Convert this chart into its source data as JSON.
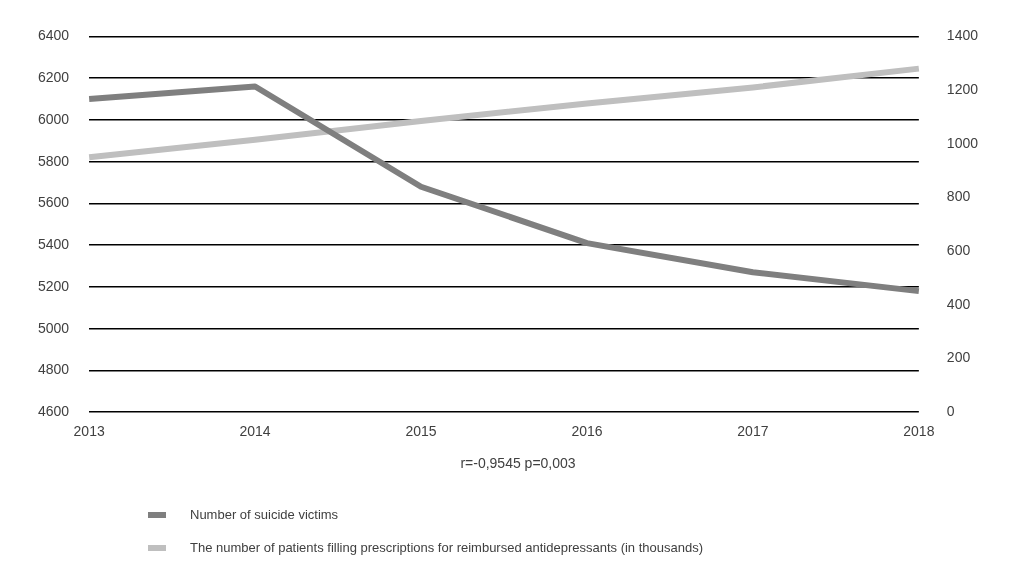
{
  "chart_data": {
    "type": "line",
    "categories": [
      "2013",
      "2014",
      "2015",
      "2016",
      "2017",
      "2018"
    ],
    "series": [
      {
        "name": "Number  of suicide victims",
        "color": "#7f7f7f",
        "values": [
          6100,
          6160,
          5680,
          5410,
          5270,
          5180
        ]
      },
      {
        "name": "The number of patients filling prescriptions for reimbursed antidepressants  (in thousands)",
        "color": "#bfbfbf",
        "values": [
          950,
          1015,
          1085,
          1150,
          1210,
          1280
        ],
        "axis": "y2"
      }
    ],
    "ylim": [
      4600,
      6400
    ],
    "yticks": [
      4600,
      4800,
      5000,
      5200,
      5400,
      5600,
      5800,
      6000,
      6200,
      6400
    ],
    "y2lim": [
      0,
      1400
    ],
    "y2ticks": [
      0,
      200,
      400,
      600,
      800,
      1000,
      1200,
      1400
    ],
    "grid": "y",
    "legend": "bottom",
    "marker": "none",
    "line_style": "solid",
    "annotations": [
      "r=-0,9545 p=0,003"
    ]
  }
}
